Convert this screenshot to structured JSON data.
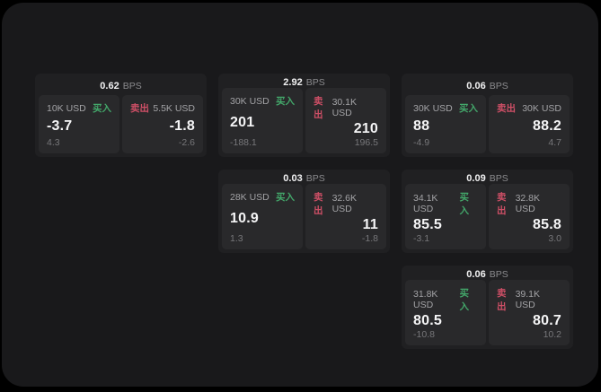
{
  "labels": {
    "bps_suffix": "BPS",
    "buy": "买入",
    "sell": "卖出"
  },
  "colors": {
    "buy_accent": "#43a76a",
    "sell_accent": "#ce4f66",
    "surface": "#19191b",
    "card": "#202022",
    "panel": "#29292b"
  },
  "cards": [
    {
      "row": 1,
      "col": 1,
      "bps": "0.62",
      "buy": {
        "size": "10K USD",
        "price": "-3.7",
        "delta": "4.3"
      },
      "sell": {
        "size": "5.5K USD",
        "price": "-1.8",
        "delta": "-2.6"
      }
    },
    {
      "row": 1,
      "col": 2,
      "bps": "2.92",
      "buy": {
        "size": "30K USD",
        "price": "201",
        "delta": "-188.1"
      },
      "sell": {
        "size": "30.1K USD",
        "price": "210",
        "delta": "196.5"
      }
    },
    {
      "row": 1,
      "col": 3,
      "bps": "0.06",
      "buy": {
        "size": "30K USD",
        "price": "88",
        "delta": "-4.9"
      },
      "sell": {
        "size": "30K USD",
        "price": "88.2",
        "delta": "4.7"
      }
    },
    {
      "row": 2,
      "col": 2,
      "bps": "0.03",
      "buy": {
        "size": "28K USD",
        "price": "10.9",
        "delta": "1.3"
      },
      "sell": {
        "size": "32.6K USD",
        "price": "11",
        "delta": "-1.8"
      }
    },
    {
      "row": 2,
      "col": 3,
      "bps": "0.09",
      "buy": {
        "size": "34.1K USD",
        "price": "85.5",
        "delta": "-3.1"
      },
      "sell": {
        "size": "32.8K USD",
        "price": "85.8",
        "delta": "3.0"
      }
    },
    {
      "row": 3,
      "col": 3,
      "bps": "0.06",
      "buy": {
        "size": "31.8K USD",
        "price": "80.5",
        "delta": "-10.8"
      },
      "sell": {
        "size": "39.1K USD",
        "price": "80.7",
        "delta": "10.2"
      }
    }
  ]
}
